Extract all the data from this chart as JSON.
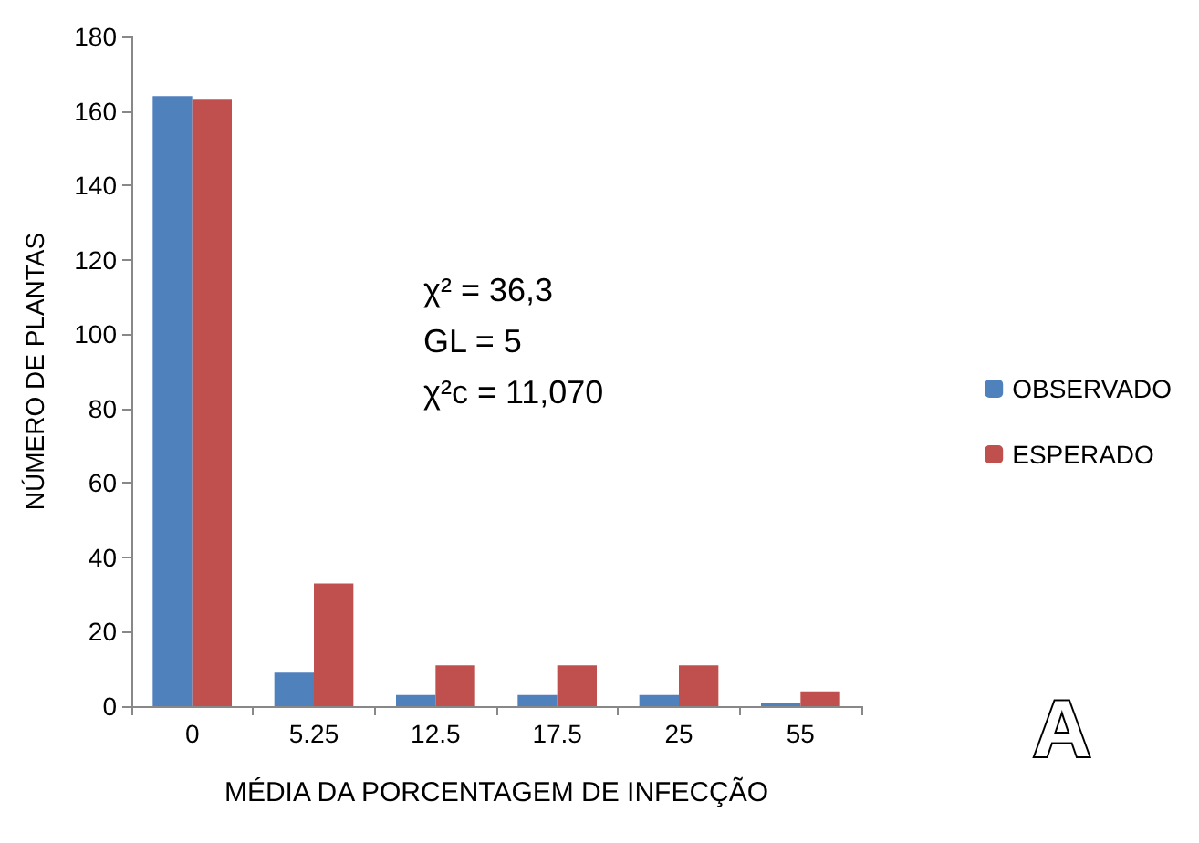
{
  "chart_data": {
    "type": "bar",
    "xlabel": "MÉDIA DA PORCENTAGEM DE INFECÇÃO",
    "ylabel": "NÚMERO DE PLANTAS",
    "categories": [
      "0",
      "5.25",
      "12.5",
      "17.5",
      "25",
      "55"
    ],
    "series": [
      {
        "name": "OBSERVADO",
        "color": "#4f81bd",
        "values": [
          164,
          9,
          3,
          3,
          3,
          1
        ]
      },
      {
        "name": "ESPERADO",
        "color": "#c0504d",
        "values": [
          163,
          33,
          11,
          11,
          11,
          4
        ]
      }
    ],
    "ylim": [
      0,
      180
    ],
    "yticks": [
      0,
      20,
      40,
      60,
      80,
      100,
      120,
      140,
      160,
      180
    ],
    "grid": false,
    "legend": "right",
    "annotations": [
      "χ² = 36,3",
      "GL = 5",
      "χ²c = 11,070",
      "A"
    ]
  }
}
